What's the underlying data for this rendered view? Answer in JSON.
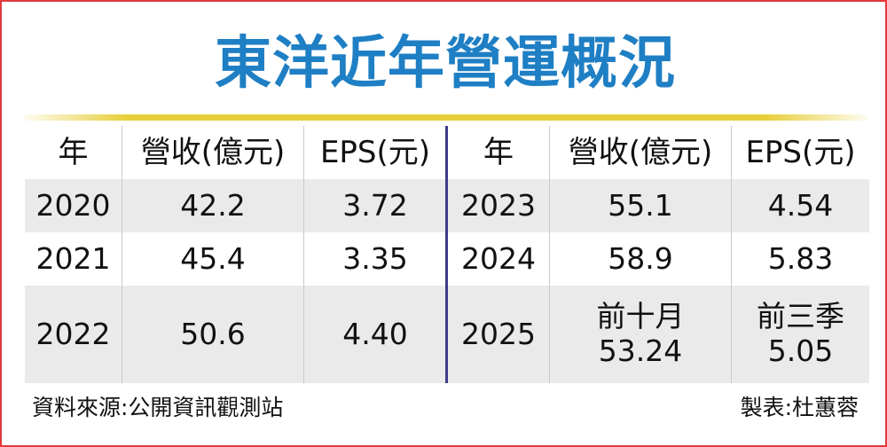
{
  "title": "東洋近年營運概況",
  "headers": {
    "year": "年",
    "revenue": "營收(億元)",
    "eps": "EPS(元)"
  },
  "left_rows": [
    {
      "year": "2020",
      "revenue": "42.2",
      "eps": "3.72"
    },
    {
      "year": "2021",
      "revenue": "45.4",
      "eps": "3.35"
    },
    {
      "year": "2022",
      "revenue": "50.6",
      "eps": "4.40"
    }
  ],
  "right_rows": [
    {
      "year": "2023",
      "revenue": "55.1",
      "eps": "4.54"
    },
    {
      "year": "2024",
      "revenue": "58.9",
      "eps": "5.83"
    },
    {
      "year": "2025",
      "revenue_note": "前十月",
      "revenue": "53.24",
      "eps_note": "前三季",
      "eps": "5.05"
    }
  ],
  "source": "資料來源:公開資訊觀測站",
  "credit": "製表:杜蕙蓉",
  "colors": {
    "title": "#1f7fc4",
    "rule": "#e8cf3c",
    "border": "#e23a3a",
    "divider": "#3b3b8c",
    "stripe": "#eaeaea"
  }
}
